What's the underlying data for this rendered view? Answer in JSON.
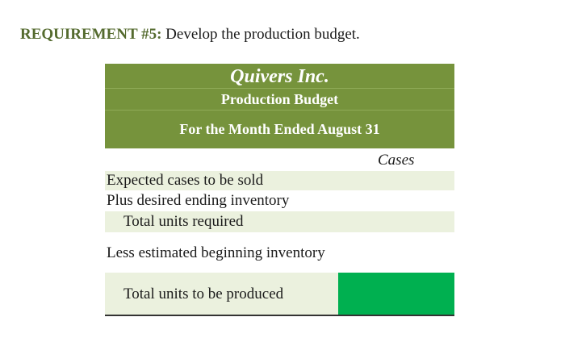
{
  "requirement": {
    "label": "REQUIREMENT #5:",
    "text": " Develop the production budget."
  },
  "budget": {
    "company": "Quivers Inc.",
    "title": "Production Budget",
    "period": "For the Month Ended August 31",
    "column_header": "Cases",
    "rows": [
      {
        "label": "Expected cases to be sold",
        "value": ""
      },
      {
        "label": "Plus desired ending inventory",
        "value": ""
      },
      {
        "label": "Total units required",
        "value": ""
      },
      {
        "label": "Less estimated beginning inventory",
        "value": ""
      },
      {
        "label": "Total units to be produced",
        "value": ""
      }
    ]
  },
  "colors": {
    "header_green": "#76933c",
    "row_shade": "#ebf1de",
    "input_cell": "#00b050",
    "requirement_label": "#556b2f"
  }
}
